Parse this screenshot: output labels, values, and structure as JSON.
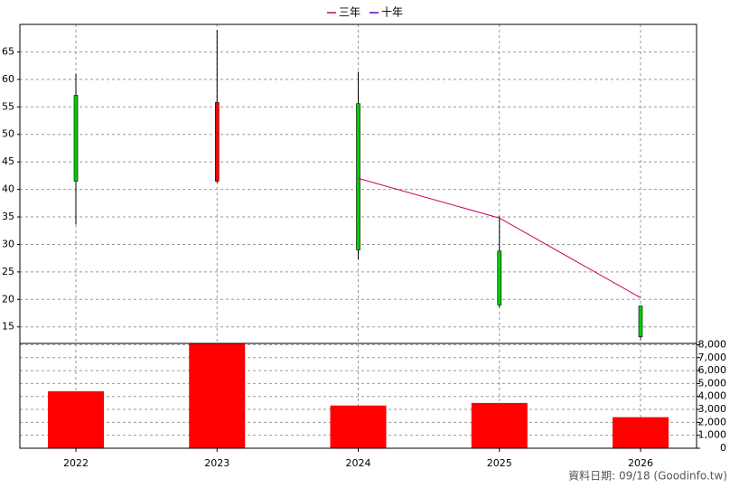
{
  "chart_data": {
    "type": "candlestick",
    "categories": [
      "2022",
      "2023",
      "2024",
      "2025",
      "2026"
    ],
    "open": [
      57.1,
      41.5,
      55.6,
      28.8,
      18.8
    ],
    "high": [
      61,
      69,
      61.4,
      35.1,
      18.8
    ],
    "low": [
      33.6,
      41.2,
      27.3,
      18.6,
      12.7
    ],
    "close": [
      41.5,
      55.8,
      29,
      19,
      13.2
    ],
    "up_color": "#ff0000",
    "down_color": "#00cc00",
    "ylim": [
      12,
      70
    ],
    "yticks": [
      15,
      20,
      25,
      30,
      35,
      40,
      45,
      50,
      55,
      60,
      65
    ],
    "grid": true,
    "lines": [
      {
        "name": "三年",
        "color": "#cc0066",
        "values": [
          null,
          null,
          42,
          34.8,
          20.3
        ]
      },
      {
        "name": "十年",
        "color": "#6600cc",
        "values": [
          null,
          null,
          null,
          null,
          null
        ]
      }
    ],
    "volume": {
      "color": "#ff0000",
      "values": [
        4400,
        8100,
        3300,
        3500,
        2400
      ],
      "ylim": [
        0,
        8100
      ],
      "yticks": [
        0,
        {
          "value": 1000,
          "label": "1,000"
        },
        {
          "value": 2000,
          "label": "2,000"
        },
        {
          "value": 3000,
          "label": "3,000"
        },
        {
          "value": 4000,
          "label": "4,000"
        },
        {
          "value": 5000,
          "label": "5,000"
        },
        {
          "value": 6000,
          "label": "6,000"
        },
        {
          "value": 7000,
          "label": "7,000"
        },
        {
          "value": 8000,
          "label": "8,000"
        }
      ]
    },
    "note": "資料日期: 09/18  (Goodinfo.tw)"
  }
}
